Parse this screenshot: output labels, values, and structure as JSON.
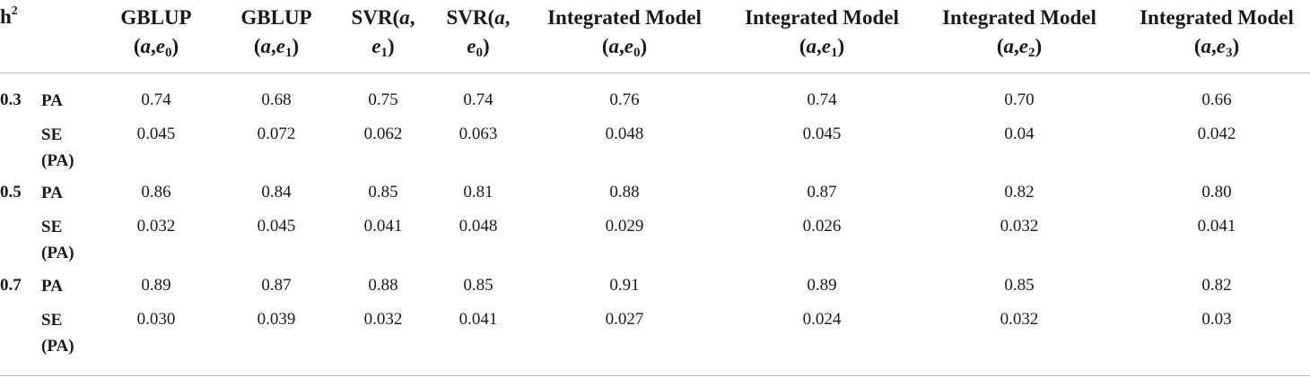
{
  "table": {
    "h_label": "h",
    "h_sup": "2",
    "columns": [
      {
        "l1a": "GBLUP",
        "l1b": "",
        "l1sub": "",
        "l1c": "",
        "l2a": "(",
        "l2b": "a",
        "l2c": ",",
        "l2d": "e",
        "l2sub": "0",
        "l2e": ")"
      },
      {
        "l1a": "GBLUP",
        "l1b": "",
        "l1sub": "",
        "l1c": "",
        "l2a": "(",
        "l2b": "a",
        "l2c": ",",
        "l2d": "e",
        "l2sub": "1",
        "l2e": ")"
      },
      {
        "l1a": "SVR(",
        "l1b": "a",
        "l1sub": "",
        "l1c": ",",
        "l2a": "",
        "l2b": "",
        "l2c": "",
        "l2d": "e",
        "l2sub": "1",
        "l2e": ")"
      },
      {
        "l1a": "SVR(",
        "l1b": "a",
        "l1sub": "",
        "l1c": ",",
        "l2a": "",
        "l2b": "",
        "l2c": "",
        "l2d": "e",
        "l2sub": "0",
        "l2e": ")"
      },
      {
        "l1a": "Integrated Model",
        "l1b": "",
        "l1sub": "",
        "l1c": "",
        "l2a": "(",
        "l2b": "a",
        "l2c": ",",
        "l2d": "e",
        "l2sub": "0",
        "l2e": ")"
      },
      {
        "l1a": "Integrated Model",
        "l1b": "",
        "l1sub": "",
        "l1c": "",
        "l2a": "(",
        "l2b": "a",
        "l2c": ",",
        "l2d": "e",
        "l2sub": "1",
        "l2e": ")"
      },
      {
        "l1a": "Integrated Model",
        "l1b": "",
        "l1sub": "",
        "l1c": "",
        "l2a": "(",
        "l2b": "a",
        "l2c": ",",
        "l2d": "e",
        "l2sub": "2",
        "l2e": ")"
      },
      {
        "l1a": "Integrated Model",
        "l1b": "",
        "l1sub": "",
        "l1c": "",
        "l2a": "(",
        "l2b": "a",
        "l2c": ",",
        "l2d": "e",
        "l2sub": "3",
        "l2e": ")"
      }
    ],
    "groups": [
      {
        "h": "0.3",
        "rows": [
          {
            "label": "PA",
            "label2": "",
            "values": [
              "0.74",
              "0.68",
              "0.75",
              "0.74",
              "0.76",
              "0.74",
              "0.70",
              "0.66"
            ]
          },
          {
            "label": "SE",
            "label2": "(PA)",
            "values": [
              "0.045",
              "0.072",
              "0.062",
              "0.063",
              "0.048",
              "0.045",
              "0.04",
              "0.042"
            ]
          }
        ]
      },
      {
        "h": "0.5",
        "rows": [
          {
            "label": "PA",
            "label2": "",
            "values": [
              "0.86",
              "0.84",
              "0.85",
              "0.81",
              "0.88",
              "0.87",
              "0.82",
              "0.80"
            ]
          },
          {
            "label": "SE",
            "label2": "(PA)",
            "values": [
              "0.032",
              "0.045",
              "0.041",
              "0.048",
              "0.029",
              "0.026",
              "0.032",
              "0.041"
            ]
          }
        ]
      },
      {
        "h": "0.7",
        "rows": [
          {
            "label": "PA",
            "label2": "",
            "values": [
              "0.89",
              "0.87",
              "0.88",
              "0.85",
              "0.91",
              "0.89",
              "0.85",
              "0.82"
            ]
          },
          {
            "label": "SE",
            "label2": "(PA)",
            "values": [
              "0.030",
              "0.039",
              "0.032",
              "0.041",
              "0.027",
              "0.024",
              "0.032",
              "0.03"
            ]
          }
        ]
      }
    ]
  }
}
